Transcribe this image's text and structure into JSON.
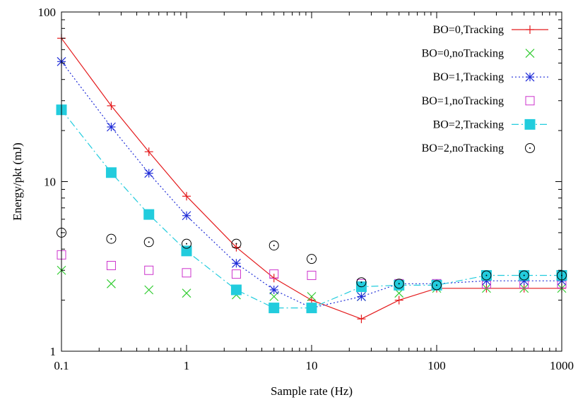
{
  "chart_data": {
    "type": "line",
    "title": "",
    "xlabel": "Sample rate (Hz)",
    "ylabel": "Energy/pkt (mJ)",
    "xscale": "log",
    "yscale": "log",
    "xlim": [
      0.1,
      1000
    ],
    "ylim": [
      1,
      100
    ],
    "x_ticks": [
      0.1,
      1,
      10,
      100,
      1000
    ],
    "x_tick_labels": [
      "0.1",
      "1",
      "10",
      "100",
      "1000"
    ],
    "y_ticks": [
      1,
      10,
      100
    ],
    "y_tick_labels": [
      "1",
      "10",
      "100"
    ],
    "grid": false,
    "legend_position": "top-right",
    "x": [
      0.1,
      0.25,
      0.5,
      1,
      2.5,
      5,
      10,
      25,
      50,
      100,
      250,
      500,
      1000
    ],
    "series": [
      {
        "name": "BO=0,Tracking",
        "color": "#e41a1c",
        "line": "solid",
        "marker": "plus",
        "values": [
          70,
          28,
          15,
          8.2,
          4.1,
          2.7,
          2.0,
          1.55,
          2.0,
          2.35,
          2.35,
          2.35,
          2.35
        ]
      },
      {
        "name": "BO=0,noTracking",
        "color": "#33cc33",
        "line": "none",
        "marker": "cross",
        "values": [
          3.0,
          2.5,
          2.3,
          2.2,
          2.15,
          2.1,
          2.1,
          2.1,
          2.2,
          2.35,
          2.35,
          2.35,
          2.35
        ]
      },
      {
        "name": "BO=1,Tracking",
        "color": "#1f2cd8",
        "line": "dotted",
        "marker": "star",
        "values": [
          51,
          21,
          11.2,
          6.3,
          3.3,
          2.3,
          1.8,
          2.1,
          2.5,
          2.5,
          2.6,
          2.6,
          2.6
        ]
      },
      {
        "name": "BO=1,noTracking",
        "color": "#cc33cc",
        "line": "none",
        "marker": "square-open",
        "values": [
          3.7,
          3.2,
          3.0,
          2.9,
          2.85,
          2.85,
          2.8,
          2.5,
          2.5,
          2.5,
          2.5,
          2.5,
          2.5
        ]
      },
      {
        "name": "BO=2,Tracking",
        "color": "#22ccdd",
        "line": "dashdot",
        "marker": "square-filled",
        "values": [
          26.5,
          11.3,
          6.4,
          3.9,
          2.3,
          1.8,
          1.8,
          2.4,
          2.45,
          2.45,
          2.8,
          2.8,
          2.8
        ]
      },
      {
        "name": "BO=2,noTracking",
        "color": "#000000",
        "line": "none",
        "marker": "circle-dot",
        "values": [
          5.0,
          4.6,
          4.4,
          4.3,
          4.3,
          4.2,
          3.5,
          2.55,
          2.5,
          2.45,
          2.8,
          2.8,
          2.8
        ]
      }
    ]
  }
}
